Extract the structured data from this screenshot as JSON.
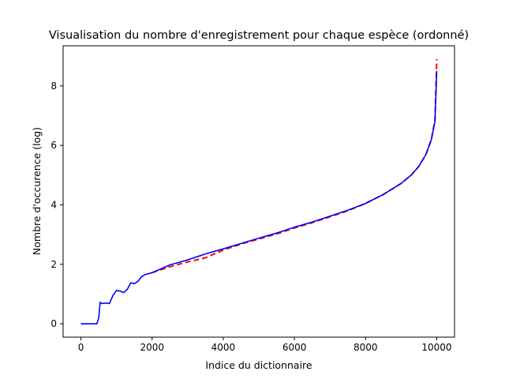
{
  "chart_data": {
    "type": "line",
    "title": "Visualisation du nombre d'enregistrement pour chaque espèce (ordonné)",
    "xlabel": "Indice du dictionnaire",
    "ylabel": "Nombre d'occurence (log)",
    "xlim": [
      -500,
      10500
    ],
    "ylim": [
      -0.45,
      9.35
    ],
    "xticks": [
      0,
      2000,
      4000,
      6000,
      8000,
      10000
    ],
    "yticks": [
      0,
      2,
      4,
      6,
      8
    ],
    "grid": false,
    "legend": "none",
    "series": [
      {
        "color": "#ff0000",
        "style": "dashed",
        "x": [
          2000,
          2500,
          3000,
          3500,
          4000,
          4500,
          5000,
          5500,
          6000,
          6500,
          7000,
          7500,
          8000,
          8500,
          9000,
          9300,
          9500,
          9700,
          9850,
          9950,
          10000
        ],
        "y": [
          1.72,
          1.92,
          2.08,
          2.22,
          2.48,
          2.68,
          2.85,
          3.02,
          3.22,
          3.4,
          3.6,
          3.8,
          4.05,
          4.35,
          4.72,
          5.02,
          5.3,
          5.7,
          6.2,
          6.85,
          8.9
        ]
      },
      {
        "color": "#0000ff",
        "style": "solid",
        "x": [
          0,
          450,
          500,
          540,
          600,
          700,
          800,
          900,
          1000,
          1100,
          1200,
          1300,
          1400,
          1500,
          1600,
          1700,
          1800,
          2000,
          2200,
          2500,
          3000,
          3500,
          4000,
          4500,
          5000,
          5500,
          6000,
          6500,
          7000,
          7500,
          8000,
          8500,
          9000,
          9300,
          9500,
          9700,
          9850,
          9950,
          10000
        ],
        "y": [
          0.0,
          0.0,
          0.2,
          0.72,
          0.68,
          0.7,
          0.68,
          0.95,
          1.12,
          1.1,
          1.05,
          1.15,
          1.38,
          1.35,
          1.42,
          1.58,
          1.65,
          1.72,
          1.82,
          1.98,
          2.15,
          2.35,
          2.52,
          2.7,
          2.88,
          3.05,
          3.25,
          3.42,
          3.62,
          3.82,
          4.05,
          4.35,
          4.72,
          5.02,
          5.3,
          5.7,
          6.2,
          6.8,
          8.5
        ]
      }
    ]
  }
}
